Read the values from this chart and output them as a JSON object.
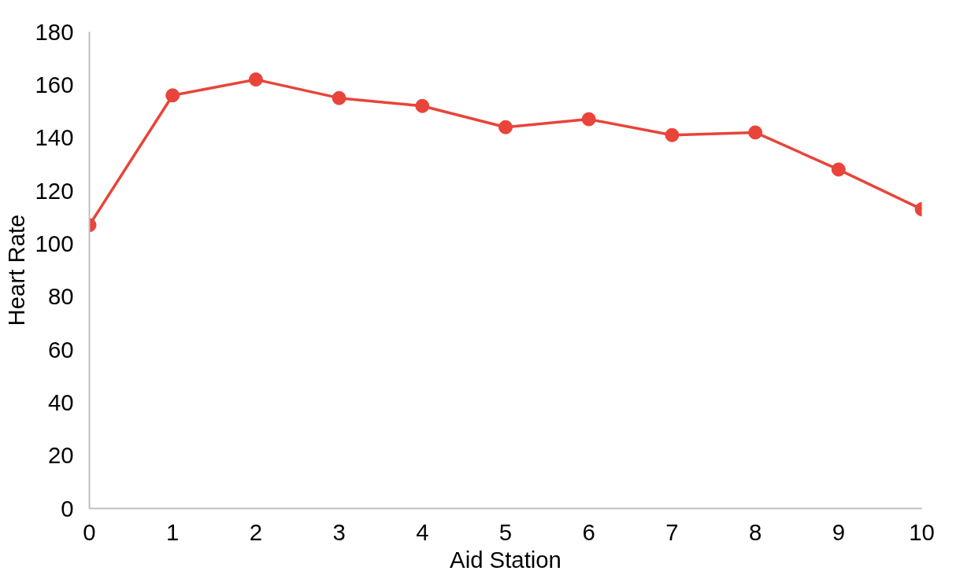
{
  "chart_data": {
    "type": "line",
    "xlabel": "Aid Station",
    "ylabel": "Heart Rate",
    "x": [
      0,
      1,
      2,
      3,
      4,
      5,
      6,
      7,
      8,
      9,
      10
    ],
    "series": [
      {
        "color": "#e8443a",
        "values": [
          107,
          156,
          162,
          155,
          152,
          144,
          147,
          141,
          142,
          128,
          113
        ]
      }
    ],
    "xlim": [
      0,
      10
    ],
    "xticks": [
      0,
      1,
      2,
      3,
      4,
      5,
      6,
      7,
      8,
      9,
      10
    ],
    "ylim": [
      0,
      180
    ],
    "yticks": [
      0,
      20,
      40,
      60,
      80,
      100,
      120,
      140,
      160,
      180
    ],
    "grid": false,
    "marker": "circle",
    "line_style": "solid"
  }
}
